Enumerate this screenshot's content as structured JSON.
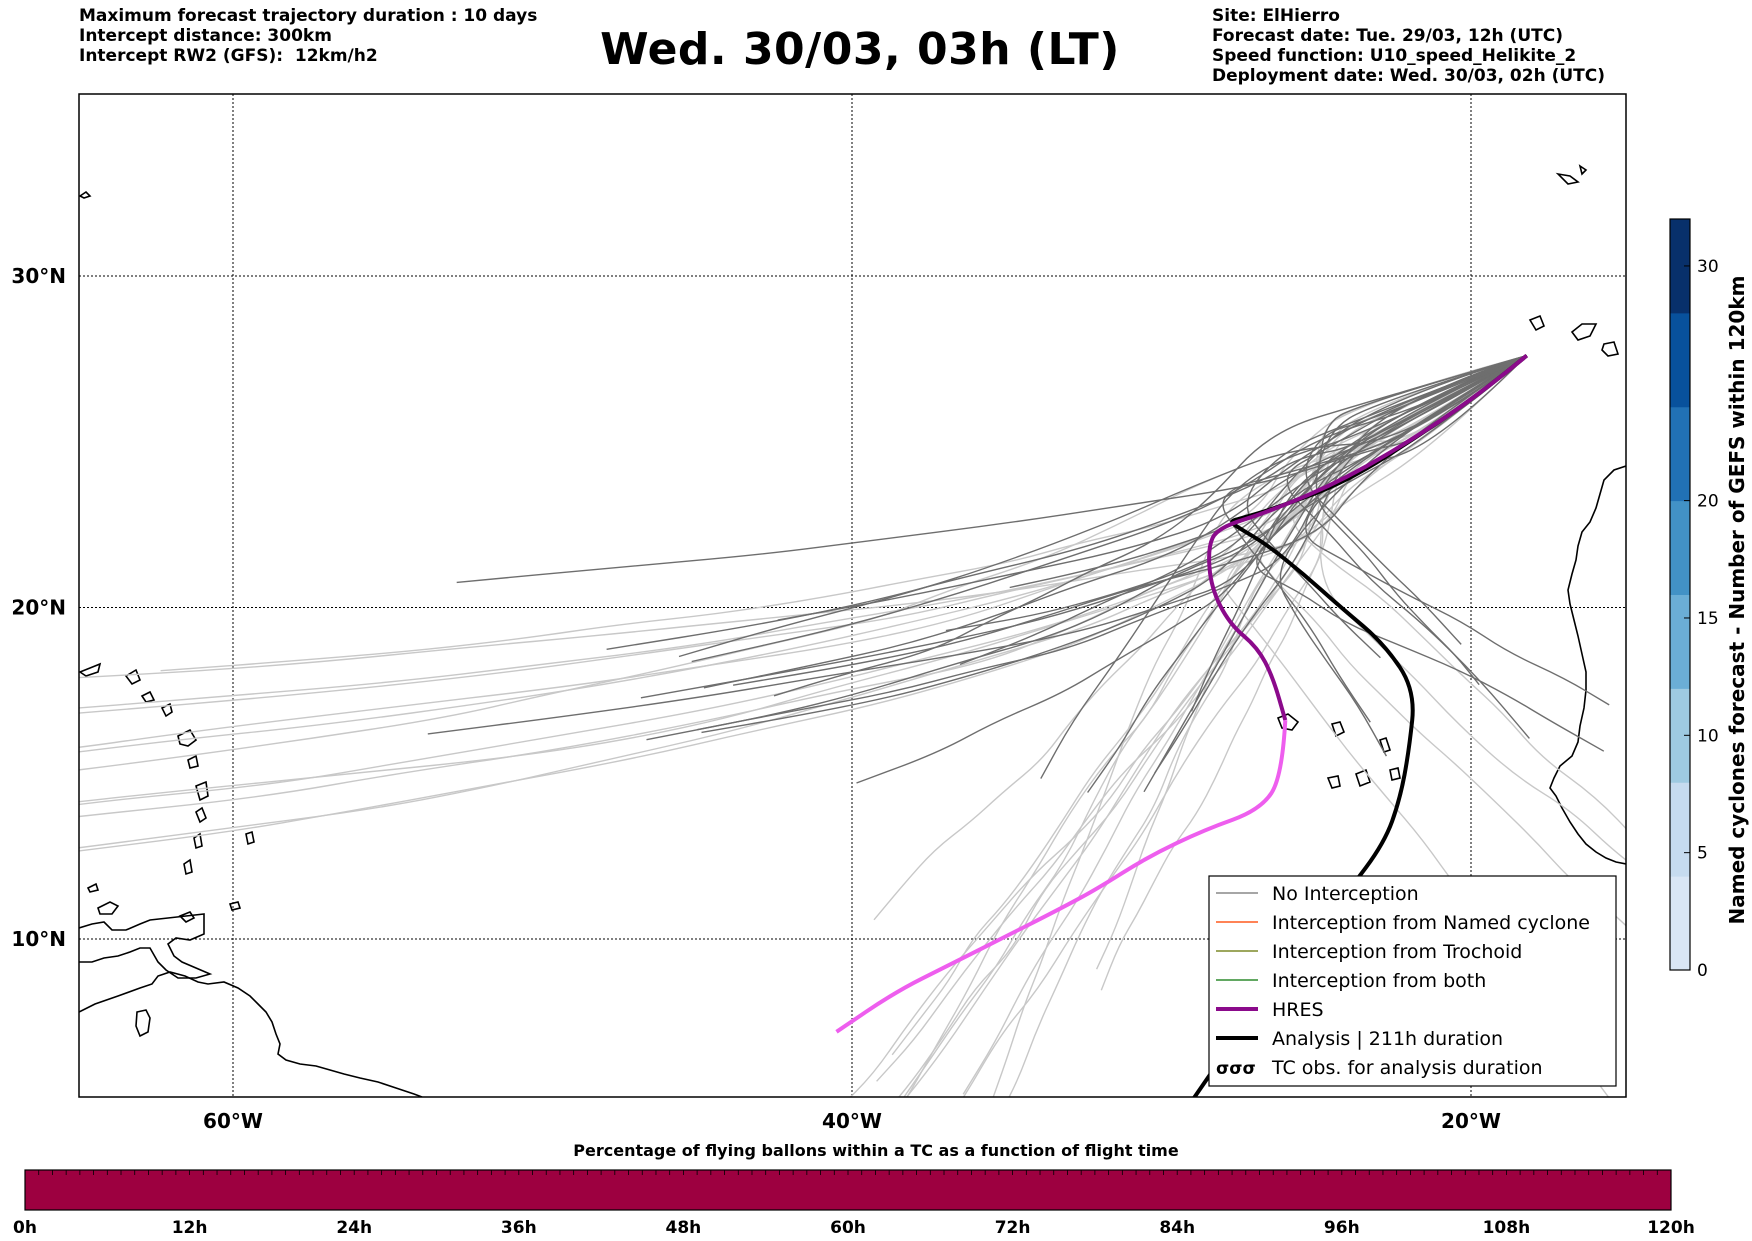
{
  "header": {
    "left_lines": [
      "Maximum forecast trajectory duration : 10 days",
      "Intercept distance: 300km",
      "Intercept RW2 (GFS):  12km/h2"
    ],
    "title": "Wed. 30/03, 03h (LT)",
    "right_lines": [
      "Site: ElHierro",
      "Forecast date: Tue. 29/03, 12h (UTC)",
      "Speed function: U10_speed_Helikite_2",
      "Deployment date: Wed. 30/03, 02h (UTC)"
    ]
  },
  "map": {
    "lon_range": [
      -65,
      15
    ],
    "lat_range": [
      4.6,
      33.8
    ],
    "lon_labels": [
      {
        "lon": -60,
        "text": "60°W"
      },
      {
        "lon": -40,
        "text": "40°W"
      },
      {
        "lon": -20,
        "text": "20°W"
      }
    ],
    "lat_labels": [
      {
        "lat": 30,
        "text": "30°N"
      },
      {
        "lat": 20,
        "text": "20°N"
      },
      {
        "lat": 10,
        "text": "10°N"
      }
    ],
    "launch_site": {
      "lon": -18.2,
      "lat": 27.6
    },
    "hres_track": [
      [
        -18.2,
        27.6
      ],
      [
        -19.5,
        26.6
      ],
      [
        -21.5,
        25.3
      ],
      [
        -24.0,
        23.9
      ],
      [
        -26.5,
        22.9
      ],
      [
        -28.2,
        22.4
      ],
      [
        -28.5,
        21.8
      ],
      [
        -28.4,
        20.6
      ],
      [
        -27.8,
        19.5
      ],
      [
        -26.9,
        18.8
      ],
      [
        -26.4,
        17.9
      ],
      [
        -26.0,
        16.6
      ],
      [
        -26.1,
        14.9
      ],
      [
        -26.8,
        13.9
      ],
      [
        -28.6,
        13.3
      ],
      [
        -30.4,
        12.5
      ],
      [
        -32.1,
        11.5
      ],
      [
        -33.3,
        10.9
      ],
      [
        -35.2,
        10.0
      ],
      [
        -36.9,
        9.2
      ],
      [
        -38.6,
        8.4
      ],
      [
        -40.5,
        7.2
      ]
    ],
    "analysis_track": [
      [
        -18.2,
        27.6
      ],
      [
        -19.5,
        26.6
      ],
      [
        -21.5,
        25.3
      ],
      [
        -24.0,
        23.8
      ],
      [
        -26.3,
        23.0
      ],
      [
        -27.4,
        22.7
      ],
      [
        -27.8,
        22.6
      ],
      [
        -27.5,
        22.4
      ],
      [
        -26.6,
        21.9
      ],
      [
        -25.4,
        21.0
      ],
      [
        -24.2,
        20.0
      ],
      [
        -22.8,
        18.9
      ],
      [
        -21.8,
        17.5
      ],
      [
        -22.0,
        15.7
      ],
      [
        -22.3,
        14.2
      ],
      [
        -22.8,
        12.9
      ],
      [
        -24.0,
        11.4
      ],
      [
        -25.8,
        9.3
      ],
      [
        -27.7,
        6.9
      ],
      [
        -29.4,
        4.6
      ]
    ],
    "ensemble_colors": {
      "dark": "#6e6e6e",
      "light": "#c8c8c8"
    },
    "hres_colors": {
      "early": "#8b0a8b",
      "late": "#ee5eee"
    }
  },
  "legend": {
    "items": [
      {
        "label": "No Interception",
        "color": "#888888",
        "width": 1.5,
        "kind": "line"
      },
      {
        "label": "Interception from Named cyclone",
        "color": "#ff5a1e",
        "width": 1.5,
        "kind": "line"
      },
      {
        "label": "Interception from Trochoid",
        "color": "#7d8a28",
        "width": 1.5,
        "kind": "line"
      },
      {
        "label": "Interception from both",
        "color": "#2e8b2e",
        "width": 1.5,
        "kind": "line"
      },
      {
        "label": "HRES",
        "color": "#8b0a8b",
        "width": 4,
        "kind": "line"
      },
      {
        "label": "Analysis | 211h duration",
        "color": "#000000",
        "width": 4,
        "kind": "line"
      },
      {
        "label": "TC obs. for analysis duration",
        "color": "#000000",
        "width": 1.5,
        "kind": "glyph",
        "glyph": "σσσ"
      }
    ]
  },
  "colorbar_right": {
    "label": "Named cyclones forecast - Number of GEFS within 120km",
    "ticks": [
      0,
      5,
      10,
      15,
      20,
      30
    ],
    "max": 32,
    "colors": [
      "#d9e6f5",
      "#c6dbef",
      "#9ecae1",
      "#6baed6",
      "#4292c6",
      "#2171b5",
      "#08519c",
      "#08306b"
    ]
  },
  "colorbar_bottom": {
    "title": "Percentage of flying ballons within a TC as a function of flight time",
    "ticks": [
      "0h",
      "12h",
      "24h",
      "36h",
      "48h",
      "60h",
      "72h",
      "84h",
      "96h",
      "108h",
      "120h"
    ],
    "fill_color": "#9d0040"
  }
}
